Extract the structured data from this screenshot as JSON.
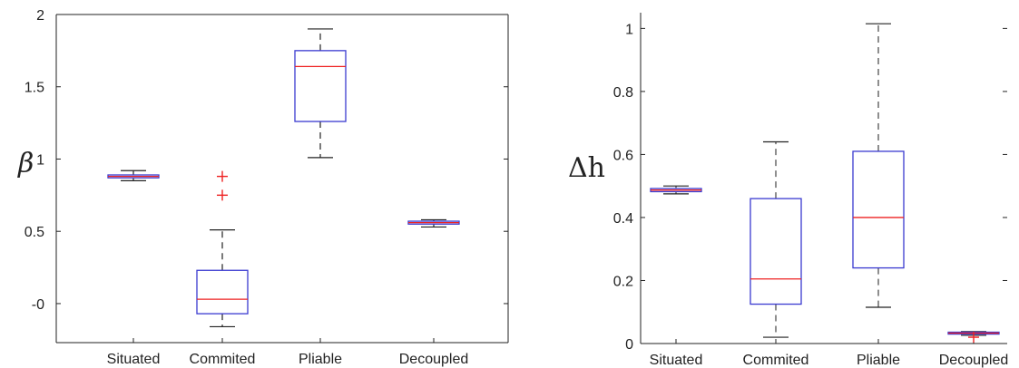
{
  "chart_data": [
    {
      "type": "box",
      "ylabel": "β",
      "categories": [
        "Situated",
        "Commited",
        "Pliable",
        "Decoupled"
      ],
      "ylim": [
        -0.27,
        2.0
      ],
      "yticks": [
        "-0",
        "0.5",
        "1",
        "1.5",
        "2"
      ],
      "ytick_values": [
        0,
        0.5,
        1,
        1.5,
        2
      ],
      "grid": false,
      "box_color": "#3a3ad0",
      "median_color": "#ee2222",
      "whisker_color": "#222222",
      "outlier_color": "#ee2222",
      "boxes": [
        {
          "whisker_low": 0.85,
          "q1": 0.87,
          "median": 0.88,
          "q3": 0.89,
          "whisker_high": 0.92,
          "outliers": []
        },
        {
          "whisker_low": -0.16,
          "q1": -0.07,
          "median": 0.03,
          "q3": 0.23,
          "whisker_high": 0.51,
          "outliers": [
            0.75,
            0.88
          ]
        },
        {
          "whisker_low": 1.01,
          "q1": 1.26,
          "median": 1.64,
          "q3": 1.75,
          "whisker_high": 1.9,
          "outliers": []
        },
        {
          "whisker_low": 0.53,
          "q1": 0.55,
          "median": 0.56,
          "q3": 0.57,
          "whisker_high": 0.58,
          "outliers": []
        }
      ]
    },
    {
      "type": "box",
      "ylabel": "Δh",
      "categories": [
        "Situated",
        "Commited",
        "Pliable",
        "Decoupled"
      ],
      "ylim": [
        0,
        1.05
      ],
      "yticks": [
        "0",
        "0.2",
        "0.4",
        "0.6",
        "0.8",
        "1"
      ],
      "ytick_values": [
        0,
        0.2,
        0.4,
        0.6,
        0.8,
        1.0
      ],
      "grid": false,
      "box_color": "#3a3ad0",
      "median_color": "#ee2222",
      "whisker_color": "#444444",
      "outlier_color": "#ee2222",
      "boxes": [
        {
          "whisker_low": 0.475,
          "q1": 0.482,
          "median": 0.487,
          "q3": 0.492,
          "whisker_high": 0.5,
          "outliers": []
        },
        {
          "whisker_low": 0.02,
          "q1": 0.125,
          "median": 0.205,
          "q3": 0.46,
          "whisker_high": 0.64,
          "outliers": []
        },
        {
          "whisker_low": 0.115,
          "q1": 0.24,
          "median": 0.4,
          "q3": 0.61,
          "whisker_high": 1.015,
          "outliers": []
        },
        {
          "whisker_low": 0.026,
          "q1": 0.03,
          "median": 0.033,
          "q3": 0.036,
          "whisker_high": 0.038,
          "outliers": [
            0.02
          ]
        }
      ]
    }
  ]
}
